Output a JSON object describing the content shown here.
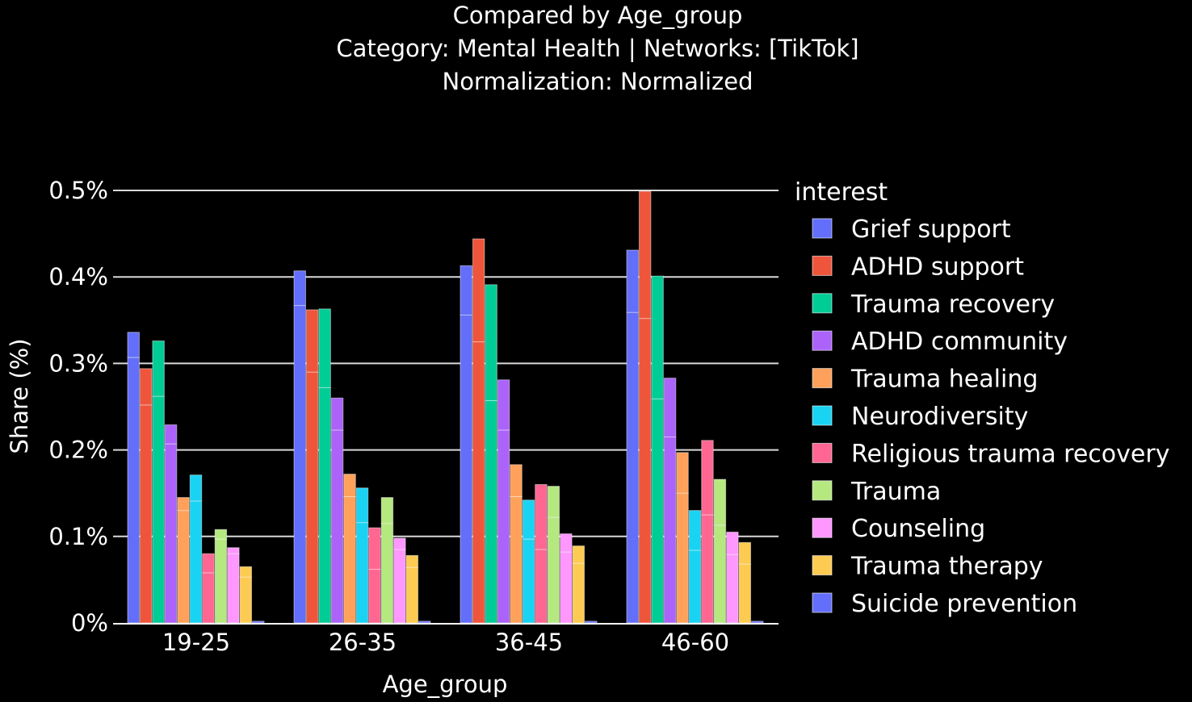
{
  "chart_data": {
    "type": "bar",
    "title_lines": [
      "Compared by Age_group",
      "Category: Mental Health | Networks: [TikTok]",
      "Normalization: Normalized"
    ],
    "xlabel": "Age_group",
    "ylabel": "Share (%)",
    "ylim": [
      0,
      0.5
    ],
    "yticks": [
      0,
      0.1,
      0.2,
      0.3,
      0.4,
      0.5
    ],
    "ytick_labels": [
      "0%",
      "0.1%",
      "0.2%",
      "0.3%",
      "0.4%",
      "0.5%"
    ],
    "grid": true,
    "legend": {
      "title": "interest",
      "placement": "right"
    },
    "categories": [
      "19-25",
      "26-35",
      "36-45",
      "46-60"
    ],
    "series": [
      {
        "name": "Grief support",
        "color": "#636efa",
        "values": [
          0.336,
          0.407,
          0.413,
          0.431
        ],
        "inner_breaks": [
          [
            0.307
          ],
          [
            0.367
          ],
          [
            0.356
          ],
          [
            0.359
          ]
        ]
      },
      {
        "name": "ADHD support",
        "color": "#ef553b",
        "values": [
          0.294,
          0.362,
          0.444,
          0.499
        ],
        "inner_breaks": [
          [
            0.252
          ],
          [
            0.29
          ],
          [
            0.325
          ],
          [
            0.352
          ]
        ]
      },
      {
        "name": "Trauma recovery",
        "color": "#00cc96",
        "values": [
          0.326,
          0.363,
          0.391,
          0.401
        ],
        "inner_breaks": [
          [
            0.262
          ],
          [
            0.272
          ],
          [
            0.257
          ],
          [
            0.259
          ]
        ]
      },
      {
        "name": "ADHD community",
        "color": "#ab63fa",
        "values": [
          0.229,
          0.26,
          0.281,
          0.283
        ],
        "inner_breaks": [
          [
            0.207
          ],
          [
            0.223
          ],
          [
            0.223
          ],
          [
            0.215
          ]
        ]
      },
      {
        "name": "Trauma healing",
        "color": "#ffa15a",
        "values": [
          0.145,
          0.172,
          0.183,
          0.197
        ],
        "inner_breaks": [
          [
            0.13
          ],
          [
            0.146
          ],
          [
            0.146
          ],
          [
            0.15
          ]
        ]
      },
      {
        "name": "Neurodiversity",
        "color": "#19d3f3",
        "values": [
          0.171,
          0.156,
          0.142,
          0.13
        ],
        "inner_breaks": [
          [
            0.141
          ],
          [
            0.116
          ],
          [
            0.097
          ],
          [
            0.084
          ]
        ]
      },
      {
        "name": "Religious trauma recovery",
        "color": "#ff6692",
        "values": [
          0.08,
          0.11,
          0.16,
          0.211
        ],
        "inner_breaks": [
          [
            0.058
          ],
          [
            0.062
          ],
          [
            0.085
          ],
          [
            0.125
          ]
        ]
      },
      {
        "name": "Trauma",
        "color": "#b6e880",
        "values": [
          0.108,
          0.145,
          0.158,
          0.166
        ],
        "inner_breaks": [
          [
            0.097
          ],
          [
            0.115
          ],
          [
            0.122
          ],
          [
            0.113
          ]
        ]
      },
      {
        "name": "Counseling",
        "color": "#ff97ff",
        "values": [
          0.087,
          0.098,
          0.103,
          0.105
        ],
        "inner_breaks": [
          [
            0.08
          ],
          [
            0.085
          ],
          [
            0.082
          ],
          [
            0.079
          ]
        ]
      },
      {
        "name": "Trauma therapy",
        "color": "#fecb52",
        "values": [
          0.065,
          0.078,
          0.089,
          0.093
        ],
        "inner_breaks": [
          [
            0.053
          ],
          [
            0.064
          ],
          [
            0.069
          ],
          [
            0.068
          ]
        ]
      },
      {
        "name": "Suicide prevention",
        "color": "#636efa",
        "values": [
          0.002,
          0.002,
          0.002,
          0.002
        ],
        "inner_breaks": [
          [],
          [],
          [],
          []
        ]
      }
    ]
  }
}
